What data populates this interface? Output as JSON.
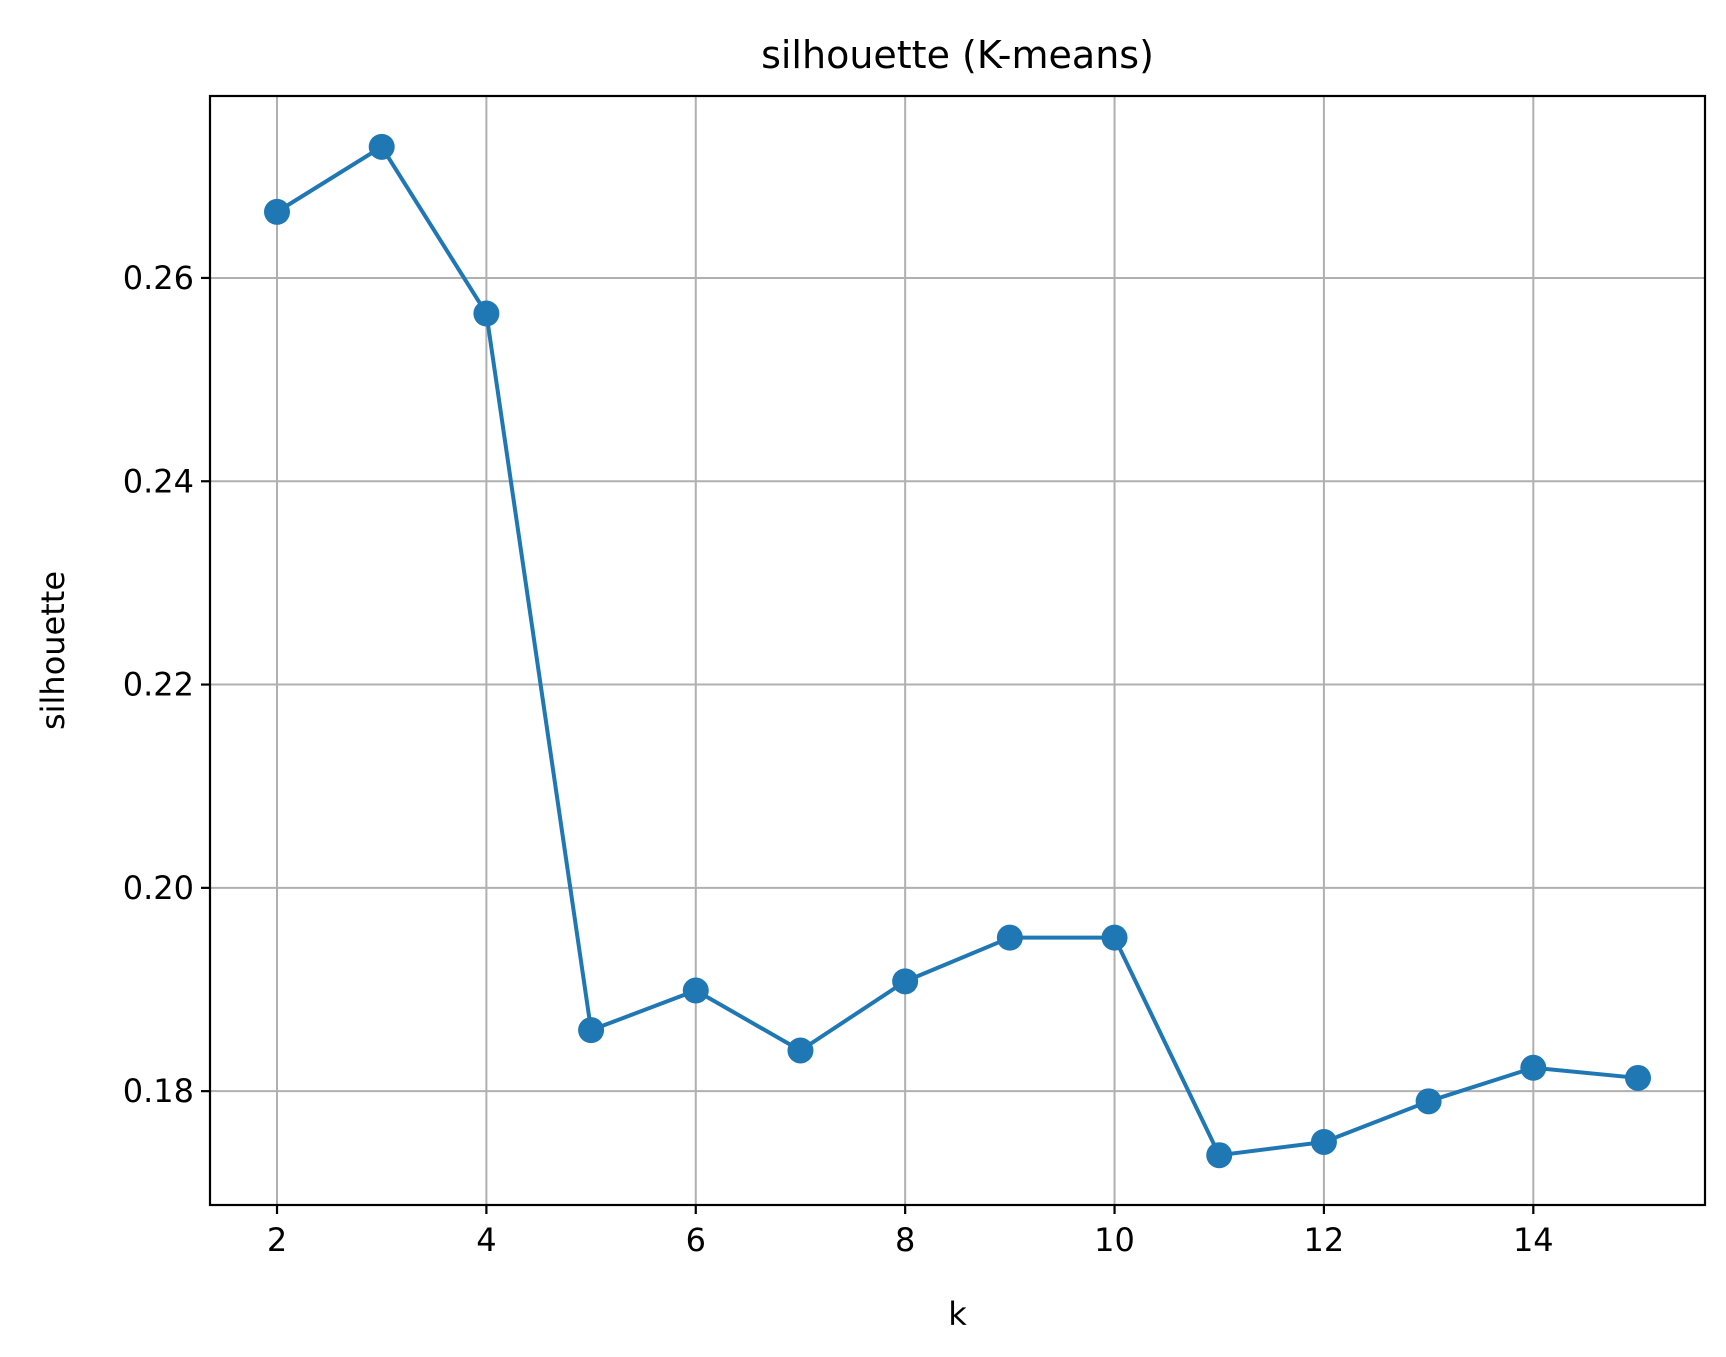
{
  "chart_data": {
    "type": "line",
    "title": "silhouette (K-means)",
    "xlabel": "k",
    "ylabel": "silhouette",
    "x_ticks": [
      "2",
      "4",
      "6",
      "8",
      "10",
      "12",
      "14"
    ],
    "y_ticks": [
      "0.18",
      "0.20",
      "0.22",
      "0.24",
      "0.26"
    ],
    "xlim": [
      1.36,
      15.64
    ],
    "ylim": [
      0.1688,
      0.2779
    ],
    "grid": true,
    "series": [
      {
        "color": "#1f77b4",
        "marker": "circle",
        "x": [
          2,
          3,
          4,
          5,
          6,
          7,
          8,
          9,
          10,
          11,
          12,
          13,
          14,
          15
        ],
        "y": [
          0.2665,
          0.2729,
          0.2565,
          0.186,
          0.1899,
          0.184,
          0.1908,
          0.1951,
          0.1951,
          0.1737,
          0.175,
          0.179,
          0.1823,
          0.1813
        ]
      }
    ]
  }
}
